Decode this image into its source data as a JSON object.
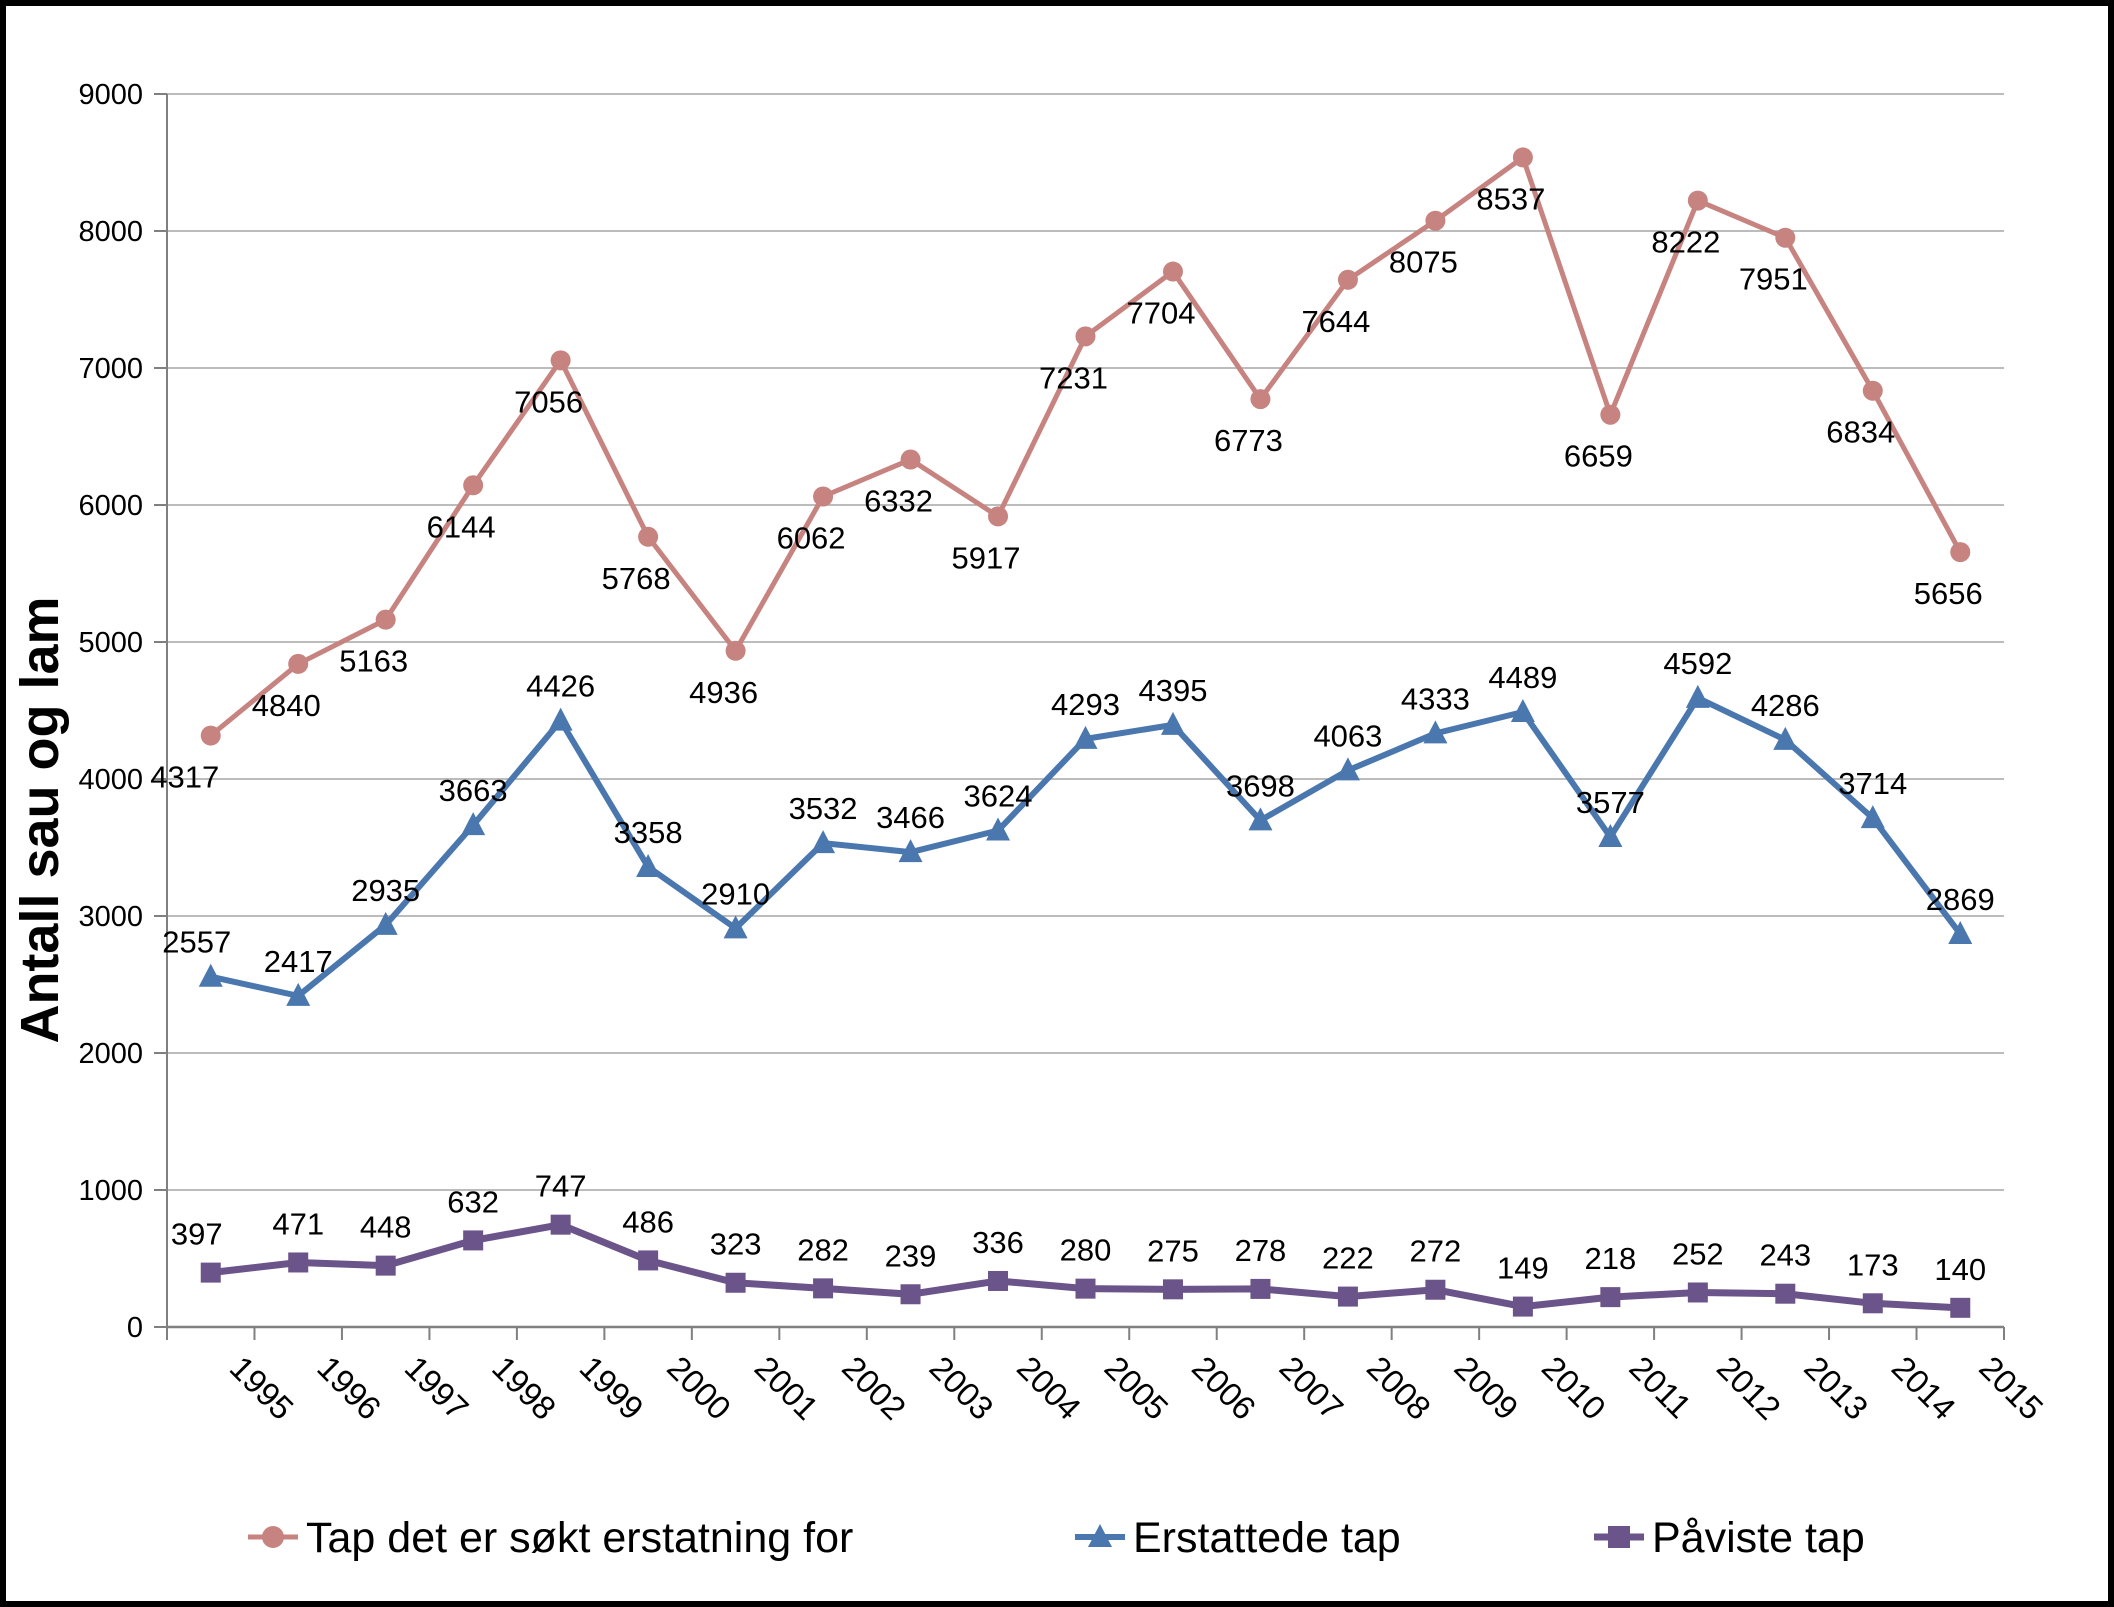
{
  "chart_data": {
    "type": "line",
    "title": "",
    "xlabel": "",
    "ylabel": "Antall sau og lam",
    "ylim": [
      0,
      9000
    ],
    "ytick_step": 1000,
    "grid": true,
    "legend_position": "bottom",
    "categories": [
      "1995",
      "1996",
      "1997",
      "1998",
      "1999",
      "2000",
      "2001",
      "2002",
      "2003",
      "2004",
      "2005",
      "2006",
      "2007",
      "2008",
      "2009",
      "2010",
      "2011",
      "2012",
      "2013",
      "2014",
      "2015"
    ],
    "series": [
      {
        "name": "Tap det er søkt erstatning for",
        "color": "#C6837F",
        "marker": "circle",
        "label_position": "below",
        "values": [
          4317,
          4840,
          5163,
          6144,
          7056,
          5768,
          4936,
          6062,
          6332,
          5917,
          7231,
          7704,
          6773,
          7644,
          8075,
          8537,
          6659,
          8222,
          7951,
          6834,
          5656
        ]
      },
      {
        "name": "Erstattede tap",
        "color": "#4A77AE",
        "marker": "triangle",
        "label_position": "above",
        "values": [
          2557,
          2417,
          2935,
          3663,
          4426,
          3358,
          2910,
          3532,
          3466,
          3624,
          4293,
          4395,
          3698,
          4063,
          4333,
          4489,
          3577,
          4592,
          4286,
          3714,
          2869
        ]
      },
      {
        "name": "Påviste tap",
        "color": "#6B5489",
        "marker": "square",
        "label_position": "above",
        "values": [
          397,
          471,
          448,
          632,
          747,
          486,
          323,
          282,
          239,
          336,
          280,
          275,
          278,
          222,
          272,
          149,
          218,
          252,
          243,
          173,
          140
        ]
      }
    ],
    "yticks": [
      "0",
      "1000",
      "2000",
      "3000",
      "4000",
      "5000",
      "6000",
      "7000",
      "8000",
      "9000"
    ]
  },
  "colors": {
    "gridline": "#A6A6A6",
    "axis": "#808080",
    "frame": "#000000",
    "background": "#FFFFFF"
  }
}
